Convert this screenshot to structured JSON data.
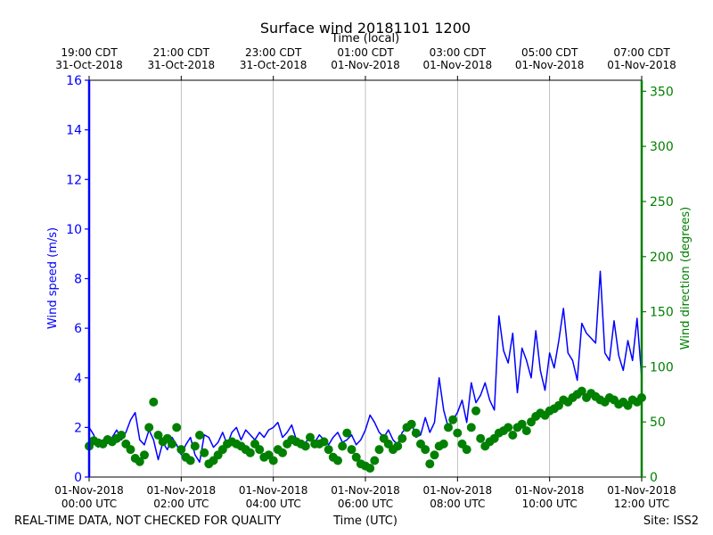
{
  "chart_data": {
    "type": "line",
    "title": "Surface wind 20181101 1200",
    "top_axis_label": "Time (local)",
    "xlabel": "Time (UTC)",
    "ylabel_left": "Wind speed (m/s)",
    "ylabel_right": "Wind direction (degrees)",
    "xlim_hours": [
      0,
      12
    ],
    "ylim_left": [
      0,
      16
    ],
    "ylim_right": [
      0,
      360
    ],
    "left_ticks": [
      "0",
      "2",
      "4",
      "6",
      "8",
      "10",
      "12",
      "14",
      "16"
    ],
    "right_ticks": [
      "0",
      "50",
      "100",
      "150",
      "200",
      "250",
      "300",
      "350"
    ],
    "bottom_ticks": [
      {
        "hour": 0,
        "line1": "01-Nov-2018",
        "line2": "00:00 UTC"
      },
      {
        "hour": 2,
        "line1": "01-Nov-2018",
        "line2": "02:00 UTC"
      },
      {
        "hour": 4,
        "line1": "01-Nov-2018",
        "line2": "04:00 UTC"
      },
      {
        "hour": 6,
        "line1": "01-Nov-2018",
        "line2": "06:00 UTC"
      },
      {
        "hour": 8,
        "line1": "01-Nov-2018",
        "line2": "08:00 UTC"
      },
      {
        "hour": 10,
        "line1": "01-Nov-2018",
        "line2": "10:00 UTC"
      },
      {
        "hour": 12,
        "line1": "01-Nov-2018",
        "line2": "12:00 UTC"
      }
    ],
    "top_ticks": [
      {
        "hour": 0,
        "line1": "19:00 CDT",
        "line2": "31-Oct-2018"
      },
      {
        "hour": 2,
        "line1": "21:00 CDT",
        "line2": "31-Oct-2018"
      },
      {
        "hour": 4,
        "line1": "23:00 CDT",
        "line2": "31-Oct-2018"
      },
      {
        "hour": 6,
        "line1": "01:00 CDT",
        "line2": "01-Nov-2018"
      },
      {
        "hour": 8,
        "line1": "03:00 CDT",
        "line2": "01-Nov-2018"
      },
      {
        "hour": 10,
        "line1": "05:00 CDT",
        "line2": "01-Nov-2018"
      },
      {
        "hour": 12,
        "line1": "07:00 CDT",
        "line2": "01-Nov-2018"
      }
    ],
    "grid_vertical": true,
    "series": [
      {
        "name": "Wind speed",
        "axis": "left",
        "units": "m/s",
        "color": "#0000ff",
        "style": "line",
        "x": [
          0,
          0.1,
          0.2,
          0.3,
          0.4,
          0.5,
          0.6,
          0.7,
          0.8,
          0.9,
          1.0,
          1.1,
          1.2,
          1.3,
          1.4,
          1.5,
          1.6,
          1.7,
          1.8,
          1.9,
          2.0,
          2.1,
          2.2,
          2.3,
          2.4,
          2.5,
          2.6,
          2.7,
          2.8,
          2.9,
          3.0,
          3.1,
          3.2,
          3.3,
          3.4,
          3.5,
          3.6,
          3.7,
          3.8,
          3.9,
          4.0,
          4.1,
          4.2,
          4.3,
          4.4,
          4.5,
          4.6,
          4.7,
          4.8,
          4.9,
          5.0,
          5.1,
          5.2,
          5.3,
          5.4,
          5.5,
          5.6,
          5.7,
          5.8,
          5.9,
          6.0,
          6.1,
          6.2,
          6.3,
          6.4,
          6.5,
          6.6,
          6.7,
          6.8,
          6.9,
          7.0,
          7.1,
          7.2,
          7.3,
          7.4,
          7.5,
          7.6,
          7.7,
          7.8,
          7.9,
          8.0,
          8.1,
          8.2,
          8.3,
          8.4,
          8.5,
          8.6,
          8.7,
          8.8,
          8.9,
          9.0,
          9.1,
          9.2,
          9.3,
          9.4,
          9.5,
          9.6,
          9.7,
          9.8,
          9.9,
          10.0,
          10.1,
          10.2,
          10.3,
          10.4,
          10.5,
          10.6,
          10.7,
          10.8,
          10.9,
          11.0,
          11.1,
          11.2,
          11.3,
          11.4,
          11.5,
          11.6,
          11.7,
          11.8,
          11.9,
          12.0
        ],
        "values": [
          2.0,
          1.7,
          1.2,
          1.5,
          1.4,
          1.6,
          1.9,
          1.5,
          1.8,
          2.3,
          2.6,
          1.5,
          1.3,
          1.9,
          1.5,
          0.7,
          1.4,
          1.1,
          1.6,
          1.3,
          0.9,
          1.3,
          1.6,
          0.9,
          0.6,
          1.7,
          1.6,
          1.2,
          1.4,
          1.8,
          1.3,
          1.8,
          2.0,
          1.5,
          1.9,
          1.7,
          1.5,
          1.8,
          1.6,
          1.9,
          2.0,
          2.2,
          1.6,
          1.8,
          2.1,
          1.5,
          1.3,
          1.4,
          1.6,
          1.4,
          1.7,
          1.5,
          1.3,
          1.6,
          1.8,
          1.4,
          1.5,
          1.7,
          1.3,
          1.5,
          1.9,
          2.5,
          2.2,
          1.8,
          1.6,
          1.9,
          1.5,
          1.3,
          1.8,
          2.0,
          2.2,
          1.6,
          1.7,
          2.4,
          1.8,
          2.2,
          4.0,
          2.7,
          2.0,
          2.3,
          2.6,
          3.1,
          2.2,
          3.8,
          3.0,
          3.3,
          3.8,
          3.1,
          2.7,
          6.5,
          5.1,
          4.6,
          5.8,
          3.4,
          5.2,
          4.7,
          4.0,
          5.9,
          4.3,
          3.5,
          5.0,
          4.4,
          5.5,
          6.8,
          5.0,
          4.7,
          3.9,
          6.2,
          5.8,
          5.6,
          5.4,
          8.3,
          5.0,
          4.7,
          6.3,
          4.9,
          4.3,
          5.5,
          4.7,
          6.4,
          4.0
        ]
      },
      {
        "name": "Wind direction",
        "axis": "right",
        "units": "degrees",
        "color": "#008000",
        "style": "markers",
        "x": [
          0,
          0.1,
          0.2,
          0.3,
          0.4,
          0.5,
          0.6,
          0.7,
          0.8,
          0.9,
          1.0,
          1.1,
          1.2,
          1.3,
          1.4,
          1.5,
          1.6,
          1.7,
          1.8,
          1.9,
          2.0,
          2.1,
          2.2,
          2.3,
          2.4,
          2.5,
          2.6,
          2.7,
          2.8,
          2.9,
          3.0,
          3.1,
          3.2,
          3.3,
          3.4,
          3.5,
          3.6,
          3.7,
          3.8,
          3.9,
          4.0,
          4.1,
          4.2,
          4.3,
          4.4,
          4.5,
          4.6,
          4.7,
          4.8,
          4.9,
          5.0,
          5.1,
          5.2,
          5.3,
          5.4,
          5.5,
          5.6,
          5.7,
          5.8,
          5.9,
          6.0,
          6.1,
          6.2,
          6.3,
          6.4,
          6.5,
          6.6,
          6.7,
          6.8,
          6.9,
          7.0,
          7.1,
          7.2,
          7.3,
          7.4,
          7.5,
          7.6,
          7.7,
          7.8,
          7.9,
          8.0,
          8.1,
          8.2,
          8.3,
          8.4,
          8.5,
          8.6,
          8.7,
          8.8,
          8.9,
          9.0,
          9.1,
          9.2,
          9.3,
          9.4,
          9.5,
          9.6,
          9.7,
          9.8,
          9.9,
          10.0,
          10.1,
          10.2,
          10.3,
          10.4,
          10.5,
          10.6,
          10.7,
          10.8,
          10.9,
          11.0,
          11.1,
          11.2,
          11.3,
          11.4,
          11.5,
          11.6,
          11.7,
          11.8,
          11.9,
          12.0
        ],
        "values": [
          28,
          33,
          31,
          30,
          34,
          32,
          35,
          38,
          30,
          25,
          17,
          14,
          20,
          45,
          68,
          38,
          32,
          35,
          30,
          45,
          25,
          18,
          15,
          28,
          38,
          22,
          12,
          15,
          20,
          25,
          30,
          32,
          30,
          28,
          25,
          22,
          30,
          25,
          18,
          20,
          15,
          25,
          22,
          30,
          34,
          32,
          30,
          28,
          36,
          30,
          30,
          32,
          25,
          18,
          15,
          28,
          40,
          25,
          18,
          12,
          10,
          8,
          15,
          25,
          35,
          30,
          25,
          28,
          35,
          45,
          48,
          40,
          30,
          25,
          12,
          20,
          28,
          30,
          45,
          52,
          40,
          30,
          25,
          45,
          60,
          35,
          28,
          32,
          35,
          40,
          42,
          45,
          38,
          45,
          48,
          42,
          50,
          55,
          58,
          56,
          60,
          62,
          65,
          70,
          68,
          72,
          75,
          78,
          72,
          76,
          73,
          70,
          68,
          72,
          70,
          66,
          68,
          65,
          70,
          68,
          72
        ]
      }
    ],
    "footer_left": "REAL-TIME DATA, NOT CHECKED FOR QUALITY",
    "footer_right": "Site: ISS2"
  }
}
